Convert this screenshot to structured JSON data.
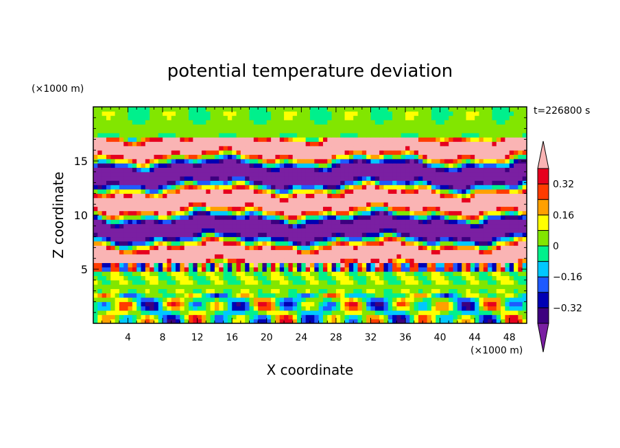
{
  "chart_data": {
    "type": "heatmap",
    "title": "potential temperature deviation",
    "xlabel": "X coordinate",
    "ylabel": "Z coordinate",
    "x_unit": "(×1000 m)",
    "y_unit": "(×1000 m)",
    "time_label": "t=226800 s",
    "xlim": [
      0,
      50
    ],
    "ylim": [
      0,
      20
    ],
    "x_ticks": [
      "4",
      "8",
      "12",
      "16",
      "20",
      "24",
      "28",
      "32",
      "36",
      "40",
      "44",
      "48"
    ],
    "y_ticks": [
      "5",
      "10",
      "15"
    ],
    "colorbar": {
      "levels": [
        -0.4,
        -0.32,
        -0.24,
        -0.16,
        -0.08,
        0,
        0.08,
        0.16,
        0.24,
        0.32,
        0.4
      ],
      "tick_labels": [
        "0.32",
        "0.16",
        "0",
        "−0.16",
        "−0.32"
      ],
      "colors": [
        "#7a1fa2",
        "#3d007f",
        "#0000b4",
        "#1e5aff",
        "#00c8ff",
        "#00f08c",
        "#82e600",
        "#ffff00",
        "#ffa000",
        "#ff3c00",
        "#e6001e",
        "#fab4b4"
      ],
      "extend": "both"
    },
    "bands": [
      {
        "z_range": [
          0,
          2.5
        ],
        "pattern": "lower turbulent plumes: yellow/red warm cells within cyan and green"
      },
      {
        "z_range": [
          2.5,
          5.5
        ],
        "pattern": "mostly green/cyan near zero with thin red streaks"
      },
      {
        "z_range": [
          5.5,
          17
        ],
        "pattern": "alternating layers of pink (>0.4) and purple (<-0.4), separated by blue, green, yellow and red"
      },
      {
        "z_range": [
          17,
          20
        ],
        "pattern": "green/cyan near zero"
      }
    ]
  }
}
